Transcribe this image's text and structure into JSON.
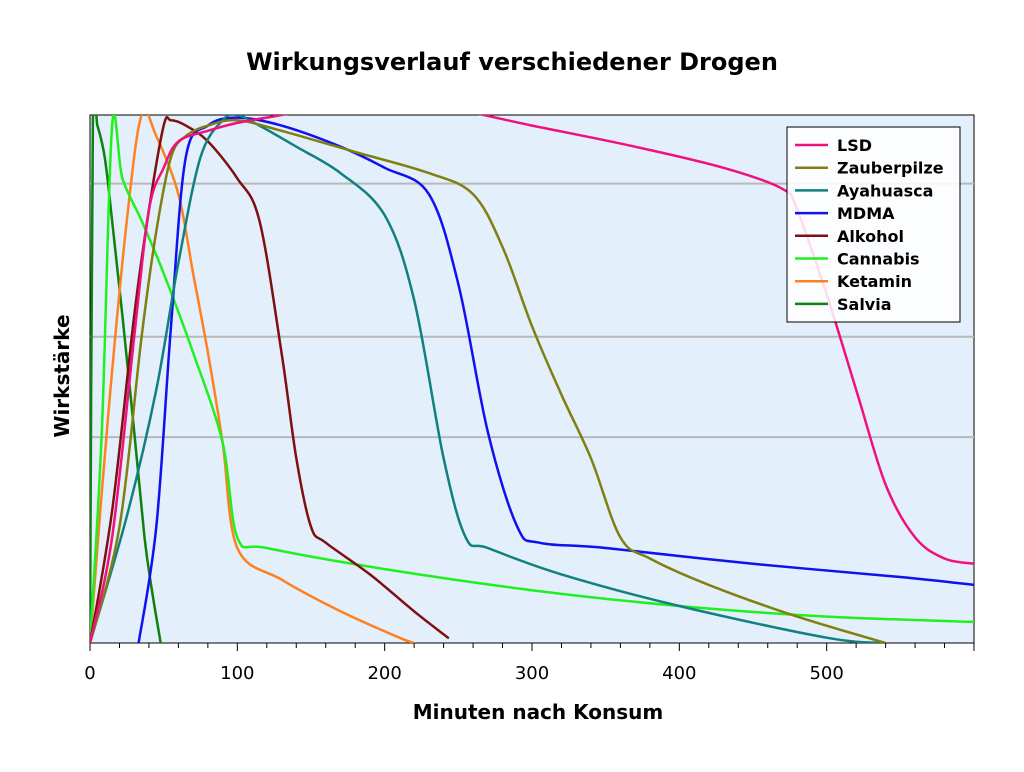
{
  "chart_data": {
    "type": "line",
    "title": "Wirkungsverlauf verschiedener Drogen",
    "xlabel": "Minuten nach Konsum",
    "ylabel": "Wirkstärke",
    "xlim": [
      0,
      600
    ],
    "ylim": [
      0,
      100
    ],
    "x_ticks": [
      0,
      100,
      200,
      300,
      400,
      500
    ],
    "grid_y_values": [
      39,
      58,
      87
    ],
    "legend_position": "top-right",
    "background_color": "#e3effa",
    "series": [
      {
        "name": "LSD",
        "color": "#f0107f",
        "points": [
          [
            0,
            0
          ],
          [
            15,
            20
          ],
          [
            30,
            58
          ],
          [
            40,
            82
          ],
          [
            50,
            90
          ],
          [
            60,
            95
          ],
          [
            80,
            97
          ],
          [
            100,
            98.5
          ],
          [
            130,
            100
          ],
          [
            180,
            102.5
          ],
          [
            230,
            102
          ],
          [
            300,
            98
          ],
          [
            370,
            94
          ],
          [
            430,
            90
          ],
          [
            470,
            86
          ],
          [
            480,
            82
          ],
          [
            500,
            66
          ],
          [
            520,
            48
          ],
          [
            540,
            30
          ],
          [
            560,
            20
          ],
          [
            580,
            16
          ],
          [
            600,
            15
          ]
        ]
      },
      {
        "name": "Zauberpilze",
        "color": "#808010",
        "points": [
          [
            0,
            0
          ],
          [
            20,
            22
          ],
          [
            35,
            58
          ],
          [
            45,
            78
          ],
          [
            55,
            92
          ],
          [
            65,
            96
          ],
          [
            80,
            98
          ],
          [
            100,
            99
          ],
          [
            130,
            97
          ],
          [
            180,
            93
          ],
          [
            230,
            89
          ],
          [
            260,
            85
          ],
          [
            280,
            75
          ],
          [
            300,
            60
          ],
          [
            320,
            47
          ],
          [
            340,
            35
          ],
          [
            360,
            20
          ],
          [
            380,
            16
          ],
          [
            420,
            11
          ],
          [
            480,
            5
          ],
          [
            540,
            0
          ]
        ]
      },
      {
        "name": "Ayahuasca",
        "color": "#108080",
        "points": [
          [
            0,
            0
          ],
          [
            25,
            24
          ],
          [
            45,
            48
          ],
          [
            60,
            72
          ],
          [
            75,
            92
          ],
          [
            90,
            99
          ],
          [
            100,
            100
          ],
          [
            115,
            98
          ],
          [
            140,
            94
          ],
          [
            170,
            89
          ],
          [
            200,
            81
          ],
          [
            220,
            65
          ],
          [
            240,
            35
          ],
          [
            255,
            20
          ],
          [
            270,
            18
          ],
          [
            320,
            13
          ],
          [
            400,
            7
          ],
          [
            500,
            1
          ],
          [
            540,
            0
          ]
        ]
      },
      {
        "name": "MDMA",
        "color": "#1010f0",
        "points": [
          [
            33,
            0
          ],
          [
            45,
            22
          ],
          [
            55,
            60
          ],
          [
            65,
            92
          ],
          [
            80,
            98
          ],
          [
            100,
            99.5
          ],
          [
            130,
            98
          ],
          [
            170,
            94
          ],
          [
            200,
            90
          ],
          [
            230,
            85
          ],
          [
            250,
            68
          ],
          [
            270,
            40
          ],
          [
            290,
            22
          ],
          [
            305,
            19
          ],
          [
            350,
            18
          ],
          [
            450,
            15
          ],
          [
            550,
            12.5
          ],
          [
            600,
            11
          ]
        ]
      },
      {
        "name": "Alkohol",
        "color": "#801010",
        "points": [
          [
            0,
            0
          ],
          [
            15,
            25
          ],
          [
            30,
            62
          ],
          [
            40,
            82
          ],
          [
            50,
            98
          ],
          [
            55,
            99
          ],
          [
            65,
            98
          ],
          [
            80,
            95
          ],
          [
            100,
            88
          ],
          [
            115,
            80
          ],
          [
            130,
            55
          ],
          [
            140,
            35
          ],
          [
            150,
            22
          ],
          [
            160,
            19
          ],
          [
            190,
            13
          ],
          [
            220,
            6
          ],
          [
            243,
            1
          ]
        ]
      },
      {
        "name": "Cannabis",
        "color": "#20f020",
        "points": [
          [
            0,
            0
          ],
          [
            8,
            40
          ],
          [
            15,
            98
          ],
          [
            22,
            88
          ],
          [
            35,
            80
          ],
          [
            50,
            70
          ],
          [
            70,
            55
          ],
          [
            90,
            38
          ],
          [
            100,
            20
          ],
          [
            120,
            18
          ],
          [
            200,
            14
          ],
          [
            300,
            10
          ],
          [
            400,
            7
          ],
          [
            500,
            5
          ],
          [
            600,
            4
          ]
        ]
      },
      {
        "name": "Ketamin",
        "color": "#ff8020",
        "points": [
          [
            0,
            0
          ],
          [
            12,
            42
          ],
          [
            25,
            80
          ],
          [
            35,
            100
          ],
          [
            45,
            96
          ],
          [
            60,
            85
          ],
          [
            70,
            70
          ],
          [
            80,
            55
          ],
          [
            90,
            38
          ],
          [
            100,
            18
          ],
          [
            130,
            12
          ],
          [
            170,
            6
          ],
          [
            210,
            1
          ],
          [
            220,
            0
          ]
        ]
      },
      {
        "name": "Salvia",
        "color": "#108010",
        "points": [
          [
            0,
            0
          ],
          [
            2,
            99
          ],
          [
            5,
            98
          ],
          [
            10,
            92
          ],
          [
            15,
            80
          ],
          [
            22,
            62
          ],
          [
            30,
            40
          ],
          [
            37,
            20
          ],
          [
            42,
            10
          ],
          [
            48,
            0
          ]
        ]
      }
    ]
  }
}
